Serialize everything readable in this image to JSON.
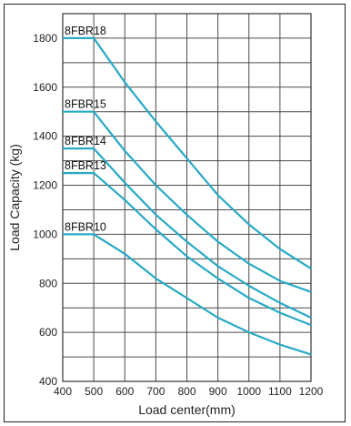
{
  "chart_data": {
    "type": "line",
    "title": "",
    "xlabel": "Load center(mm)",
    "ylabel": "Load Capacity (kg)",
    "xlim": [
      400,
      1200
    ],
    "ylim": [
      400,
      1900
    ],
    "xticks": [
      400,
      500,
      600,
      700,
      800,
      900,
      1000,
      1100,
      1200
    ],
    "yticks": [
      400,
      600,
      800,
      1000,
      1200,
      1400,
      1600,
      1800
    ],
    "grid": true,
    "line_color": "#27a9c6",
    "series": [
      {
        "name": "8FBR18",
        "x": [
          400,
          500,
          600,
          700,
          800,
          900,
          1000,
          1100,
          1200
        ],
        "y": [
          1800,
          1800,
          1620,
          1460,
          1310,
          1160,
          1040,
          940,
          860
        ]
      },
      {
        "name": "8FBR15",
        "x": [
          400,
          500,
          600,
          700,
          800,
          900,
          1000,
          1100,
          1200
        ],
        "y": [
          1500,
          1500,
          1340,
          1200,
          1080,
          970,
          880,
          810,
          765
        ]
      },
      {
        "name": "8FBR14",
        "x": [
          400,
          500,
          600,
          700,
          800,
          900,
          1000,
          1100,
          1200
        ],
        "y": [
          1350,
          1350,
          1210,
          1080,
          970,
          870,
          790,
          720,
          660
        ]
      },
      {
        "name": "8FBR13",
        "x": [
          400,
          500,
          600,
          700,
          800,
          900,
          1000,
          1100,
          1200
        ],
        "y": [
          1250,
          1250,
          1140,
          1020,
          910,
          820,
          740,
          680,
          630
        ]
      },
      {
        "name": "8FBR10",
        "x": [
          400,
          500,
          600,
          700,
          800,
          900,
          1000,
          1100,
          1200
        ],
        "y": [
          1000,
          1000,
          920,
          820,
          740,
          660,
          600,
          550,
          510
        ]
      }
    ]
  }
}
